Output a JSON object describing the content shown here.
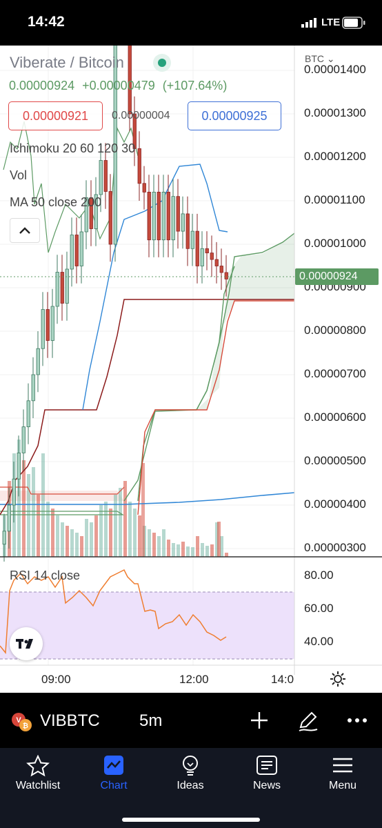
{
  "status_bar": {
    "time": "14:42",
    "network": "LTE"
  },
  "chart": {
    "title": "Viberate / Bitcoin",
    "last_price": "0.00000924",
    "change": "+0.00000479",
    "change_pct": "(+107.64%)",
    "bid": "0.00000921",
    "spread": "0.00000004",
    "ask": "0.00000925",
    "studies": [
      "Ichimoku 20 60 120 30",
      "Vol",
      "MA 50 close 200"
    ],
    "axis_currency": "BTC",
    "price_axis": [
      "0.00001400",
      "0.00001300",
      "0.00001200",
      "0.00001100",
      "0.00001000",
      "0.00000900",
      "0.00000800",
      "0.00000700",
      "0.00000600",
      "0.00000500",
      "0.00000400",
      "0.00000300"
    ],
    "price_tag": "0.00000924",
    "rsi_label": "RSI 14 close",
    "rsi_axis": [
      "80.00",
      "60.00",
      "40.00"
    ],
    "time_axis": [
      "09:00",
      "12:00",
      "14:0"
    ],
    "colors": {
      "up": "#7ab8a8",
      "down": "#d64a3a",
      "accent": "#2962ff",
      "rsi_line": "#ef7d2f",
      "rsi_band": "#ede1fb",
      "price_tag": "#5c9a63"
    }
  },
  "symbol_bar": {
    "ticker": "VIBBTC",
    "interval": "5m"
  },
  "tabs": [
    {
      "label": "Watchlist",
      "icon": "star-icon"
    },
    {
      "label": "Chart",
      "icon": "chart-icon"
    },
    {
      "label": "Ideas",
      "icon": "lightbulb-icon"
    },
    {
      "label": "News",
      "icon": "news-icon"
    },
    {
      "label": "Menu",
      "icon": "menu-icon"
    }
  ],
  "chart_data": {
    "type": "candlestick",
    "interval": "5m",
    "y_range": [
      2.8e-06,
      1.43e-05
    ],
    "x_range": [
      "08:00",
      "14:00"
    ],
    "candles_close": [
      3.9e-06,
      4.2e-06,
      5.1e-06,
      5.8e-06,
      6.5e-06,
      7e-06,
      7.8e-06,
      8.1e-06,
      7.9e-06,
      8.5e-06,
      9.2e-06,
      1.01e-05,
      1.13e-05,
      1.26e-05,
      1.3e-05,
      1.05e-05,
      1.11e-05,
      9.8e-06,
      1.07e-05,
      1.1e-05,
      1.01e-05,
      9.2e-06
    ],
    "rsi": {
      "range": [
        30,
        90
      ],
      "band": [
        30,
        70
      ]
    }
  }
}
